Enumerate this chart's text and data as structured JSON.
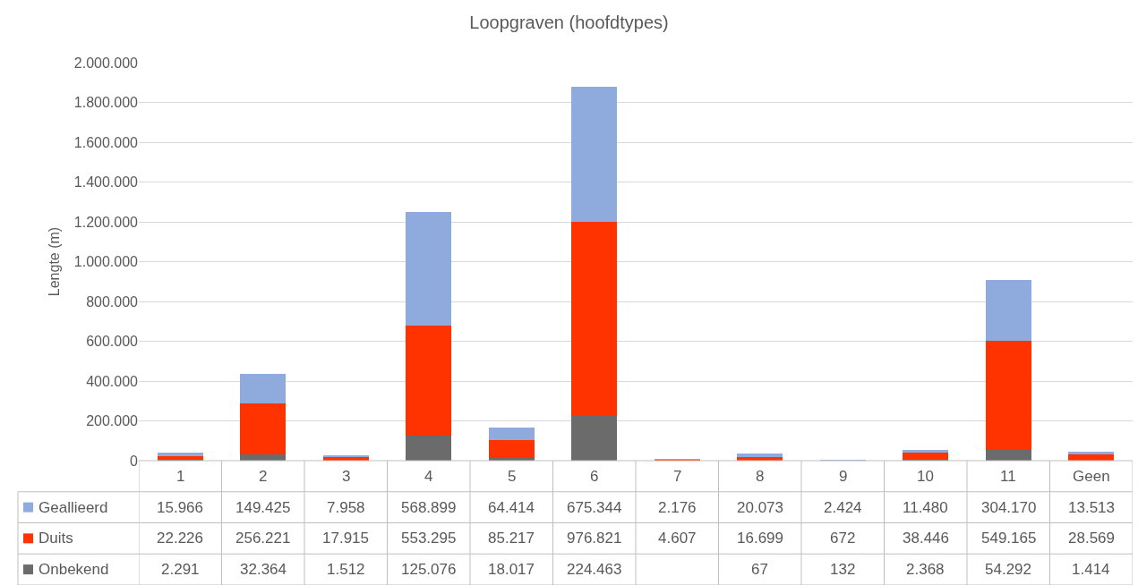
{
  "chart_data": {
    "type": "bar",
    "title": "Loopgraven (hoofdtypes)",
    "ylabel": "Lengte (m)",
    "stacked": true,
    "legend": "bottom",
    "grid": "y",
    "categories": [
      "1",
      "2",
      "3",
      "4",
      "5",
      "6",
      "7",
      "8",
      "9",
      "10",
      "11",
      "Geen"
    ],
    "ylim": [
      0,
      2000000
    ],
    "yticks": [
      0,
      {
        "value": 200000,
        "label": "200.000"
      },
      {
        "value": 400000,
        "label": "400.000"
      },
      {
        "value": 600000,
        "label": "600.000"
      },
      {
        "value": 800000,
        "label": "800.000"
      },
      {
        "value": 1000000,
        "label": "1.000.000"
      },
      {
        "value": 1200000,
        "label": "1.200.000"
      },
      {
        "value": 1400000,
        "label": "1.400.000"
      },
      {
        "value": 1600000,
        "label": "1.600.000"
      },
      {
        "value": 1800000,
        "label": "1.800.000"
      },
      {
        "value": 2000000,
        "label": "2.000.000"
      }
    ],
    "series": [
      {
        "name": "Onbekend",
        "color": "#6b6b6b",
        "values": [
          2291,
          32364,
          1512,
          125076,
          18017,
          224463,
          null,
          67,
          132,
          2368,
          54292,
          1414
        ],
        "value_labels": [
          "2.291",
          "32.364",
          "1.512",
          "125.076",
          "18.017",
          "224.463",
          null,
          "67",
          "132",
          "2.368",
          "54.292",
          "1.414"
        ]
      },
      {
        "name": "Duits",
        "color": "#ff3300",
        "values": [
          22226,
          256221,
          17915,
          553295,
          85217,
          976821,
          4607,
          16699,
          672,
          38446,
          549165,
          28569
        ],
        "value_labels": [
          "22.226",
          "256.221",
          "17.915",
          "553.295",
          "85.217",
          "976.821",
          "4.607",
          "16.699",
          "672",
          "38.446",
          "549.165",
          "28.569"
        ]
      },
      {
        "name": "Geallieerd",
        "color": "#8faadc",
        "values": [
          15966,
          149425,
          7958,
          568899,
          64414,
          675344,
          2176,
          20073,
          2424,
          11480,
          304170,
          13513
        ],
        "value_labels": [
          "15.966",
          "149.425",
          "7.958",
          "568.899",
          "64.414",
          "675.344",
          "2.176",
          "20.073",
          "2.424",
          "11.480",
          "304.170",
          "13.513"
        ]
      }
    ]
  }
}
